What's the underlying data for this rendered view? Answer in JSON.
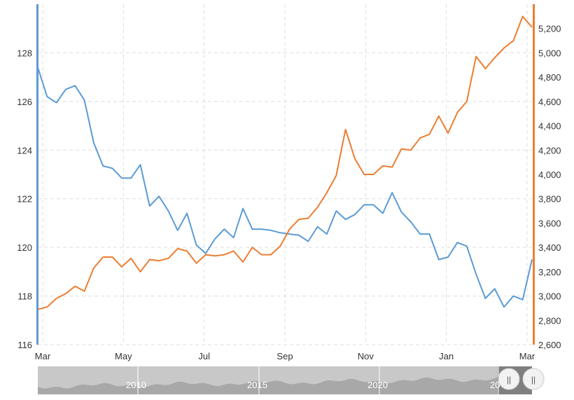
{
  "chart_data": {
    "type": "line",
    "title": "",
    "xlabel": "",
    "grid": true,
    "x_ticks": [
      "Mar",
      "May",
      "Jul",
      "Sep",
      "Nov",
      "Jan",
      "Mar"
    ],
    "y_left": {
      "ylabel": "",
      "ylim": [
        116,
        130
      ],
      "ticks": [
        "116",
        "118",
        "120",
        "122",
        "124",
        "126",
        "128"
      ],
      "color": "#5b9bd5"
    },
    "y_right": {
      "ylabel": "",
      "ylim": [
        2600,
        5400
      ],
      "ticks": [
        "2,600",
        "2,800",
        "3,000",
        "3,200",
        "3,400",
        "3,600",
        "3,800",
        "4,000",
        "4,200",
        "4,400",
        "4,600",
        "4,800",
        "5,000",
        "5,200"
      ],
      "color": "#ed7d31"
    },
    "series": [
      {
        "axis": "left",
        "color": "#5b9bd5",
        "values": [
          127.4,
          126.2,
          125.95,
          126.5,
          126.65,
          126.05,
          124.3,
          123.35,
          123.25,
          122.85,
          122.85,
          123.4,
          121.7,
          122.1,
          121.5,
          120.7,
          121.4,
          120.1,
          119.75,
          120.35,
          120.75,
          120.4,
          121.6,
          120.75,
          120.75,
          120.7,
          120.6,
          120.55,
          120.5,
          120.25,
          120.85,
          120.55,
          121.5,
          121.15,
          121.35,
          121.75,
          121.75,
          121.4,
          122.25,
          121.45,
          121.05,
          120.55,
          120.55,
          119.5,
          119.6,
          120.2,
          120.05,
          118.9,
          117.9,
          118.3,
          117.55,
          118.0,
          117.85,
          119.5
        ]
      },
      {
        "axis": "right",
        "color": "#ed7d31",
        "values": [
          2890,
          2910,
          2980,
          3020,
          3080,
          3040,
          3230,
          3320,
          3320,
          3240,
          3310,
          3200,
          3300,
          3290,
          3310,
          3390,
          3370,
          3270,
          3340,
          3330,
          3340,
          3370,
          3280,
          3400,
          3340,
          3340,
          3410,
          3550,
          3630,
          3640,
          3730,
          3850,
          3990,
          4370,
          4130,
          4000,
          4000,
          4070,
          4060,
          4210,
          4200,
          4300,
          4330,
          4480,
          4340,
          4510,
          4600,
          4970,
          4870,
          4960,
          5040,
          5100,
          5300,
          5210
        ]
      }
    ]
  },
  "navigator": {
    "labels": [
      "2010",
      "2015",
      "2020",
      "20"
    ],
    "handle_left_glyph": "||",
    "handle_right_glyph": "||"
  }
}
